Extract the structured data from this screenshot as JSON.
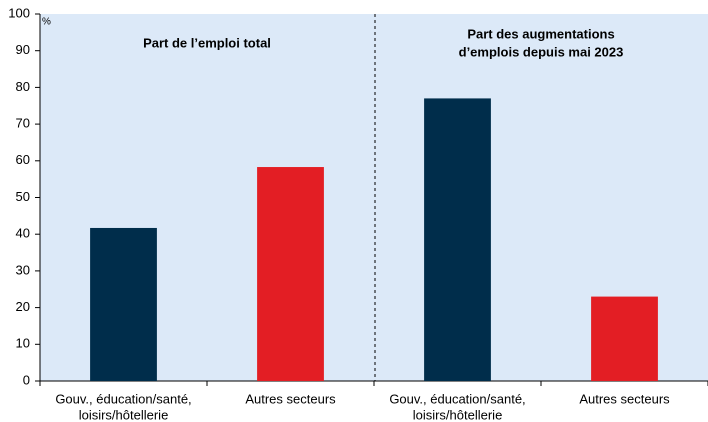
{
  "chart_data": {
    "type": "bar",
    "unit": "%",
    "annotations": [
      [
        "Part de l’emploi total"
      ],
      [
        "Part des augmentations",
        "d’emplois depuis mai 2023"
      ]
    ],
    "categories": [
      [
        "Gouv., éducation/santé,",
        "loisirs/hôtellerie"
      ],
      [
        "Autres secteurs"
      ],
      [
        "Gouv., éducation/santé,",
        "loisirs/hôtellerie"
      ],
      [
        "Autres secteurs"
      ]
    ],
    "values": [
      41.7,
      58.3,
      77,
      23
    ],
    "colors": [
      "#002d4b",
      "#e31e24",
      "#002d4b",
      "#e31e24"
    ],
    "background": "#dce9f8",
    "ylim": [
      0,
      100
    ],
    "yticks": [
      0,
      10,
      20,
      30,
      40,
      50,
      60,
      70,
      80,
      90,
      100
    ]
  }
}
